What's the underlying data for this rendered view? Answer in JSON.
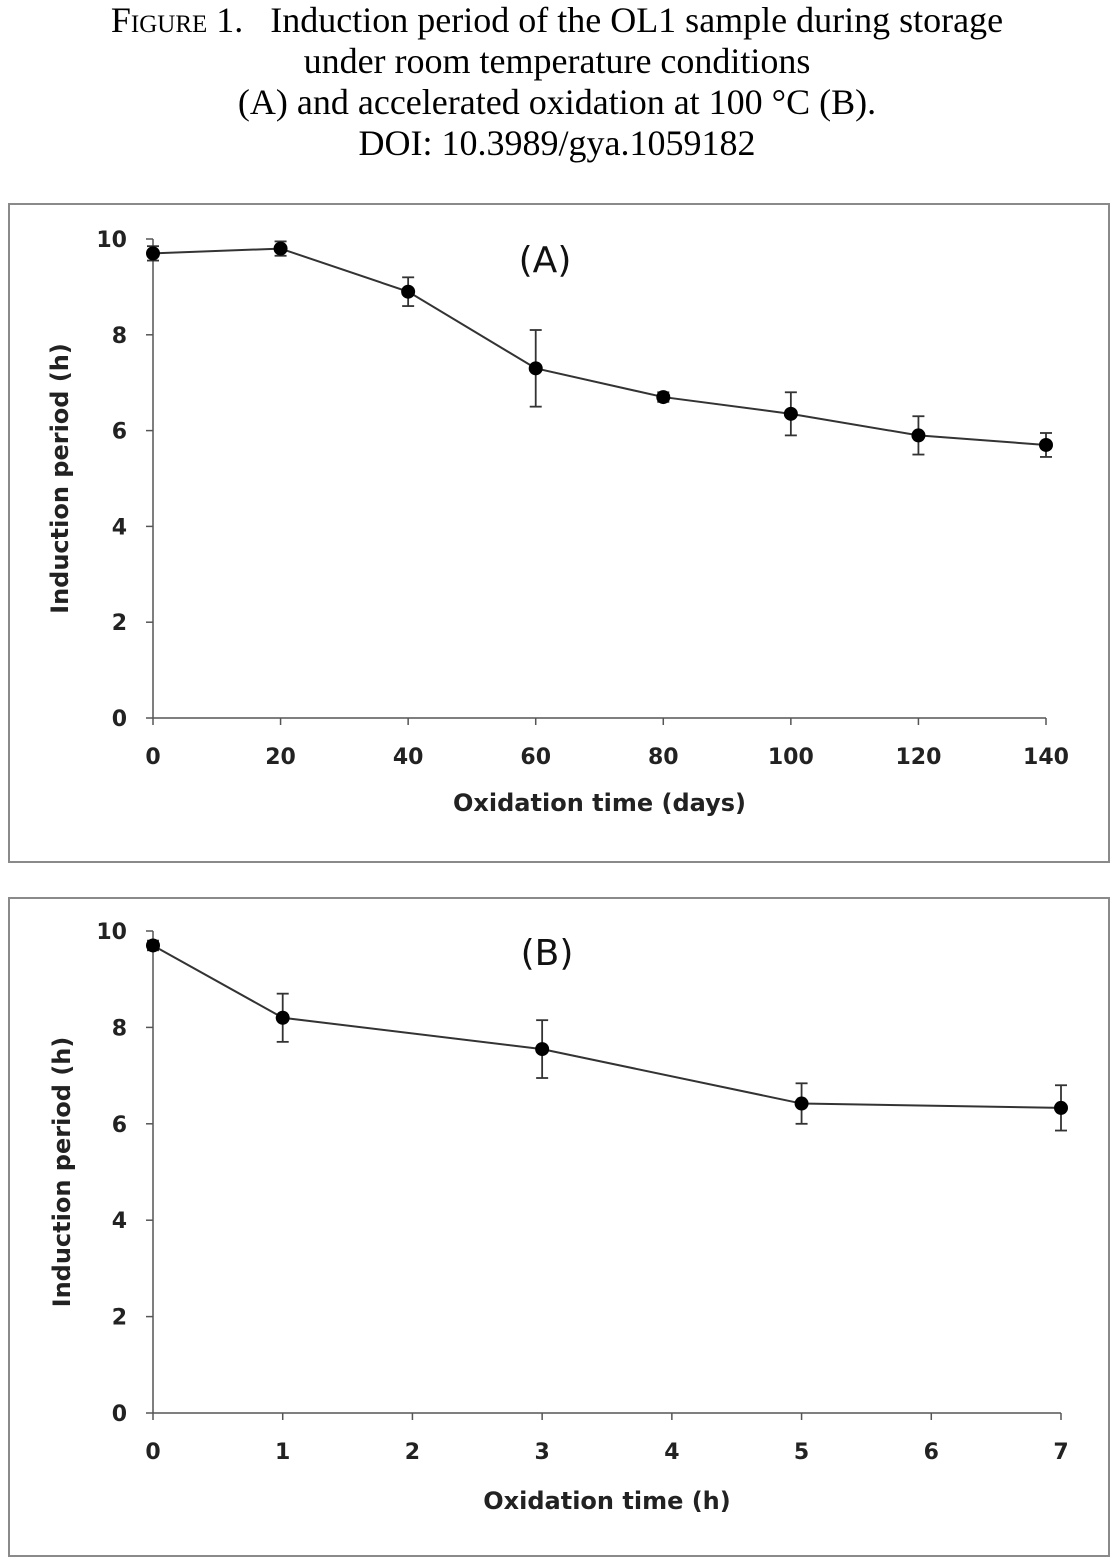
{
  "caption": {
    "figure_label": "Figure 1.",
    "line1": "Induction period of the OL1 sample during storage",
    "line2": "under room temperature conditions",
    "line3": "(A) and accelerated oxidation at 100 °C (B).",
    "line4": "DOI: 10.3989/gya.1059182"
  },
  "chart_data": [
    {
      "type": "line",
      "panel_label": "(A)",
      "xlabel": "Oxidation time (days)",
      "ylabel": "Induction period (h)",
      "xlim": [
        0,
        140
      ],
      "ylim": [
        0,
        10
      ],
      "xticks": [
        0,
        20,
        40,
        60,
        80,
        100,
        120,
        140
      ],
      "yticks": [
        0,
        2,
        4,
        6,
        8,
        10
      ],
      "grid": false,
      "legend": "none",
      "series": [
        {
          "x": [
            0,
            20,
            40,
            60,
            80,
            100,
            120,
            140
          ],
          "y": [
            9.7,
            9.8,
            8.9,
            7.3,
            6.7,
            6.35,
            5.9,
            5.7
          ],
          "error": [
            0.15,
            0.15,
            0.3,
            0.8,
            0.1,
            0.45,
            0.4,
            0.25
          ],
          "marker": "circle"
        }
      ]
    },
    {
      "type": "line",
      "panel_label": "(B)",
      "xlabel": "Oxidation time (h)",
      "ylabel": "Induction period (h)",
      "xlim": [
        0,
        7
      ],
      "ylim": [
        0,
        10
      ],
      "xticks": [
        0,
        1,
        2,
        3,
        4,
        5,
        6,
        7
      ],
      "yticks": [
        0,
        2,
        4,
        6,
        8,
        10
      ],
      "grid": false,
      "legend": "none",
      "series": [
        {
          "x": [
            0,
            1,
            3,
            5,
            7
          ],
          "y": [
            9.7,
            8.2,
            7.55,
            6.42,
            6.33
          ],
          "error": [
            0.1,
            0.5,
            0.6,
            0.42,
            0.47
          ],
          "marker": "circle"
        }
      ]
    }
  ]
}
